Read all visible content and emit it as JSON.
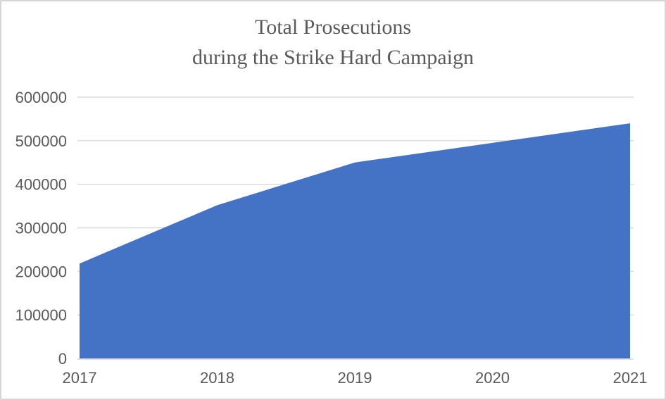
{
  "chart": {
    "title_line1": "Total Prosecutions",
    "title_line2": "during the Strike Hard Campaign"
  },
  "chart_data": {
    "type": "area",
    "title": "Total Prosecutions during the Strike Hard Campaign",
    "categories": [
      "2017",
      "2018",
      "2019",
      "2020",
      "2021"
    ],
    "values": [
      218000,
      352000,
      450000,
      495000,
      540000
    ],
    "xlabel": "",
    "ylabel": "",
    "ylim": [
      0,
      600000
    ],
    "ytick_interval": 100000,
    "ytick_labels": [
      "0",
      "100000",
      "200000",
      "300000",
      "400000",
      "500000",
      "600000"
    ],
    "grid": true,
    "legend": false,
    "area_color": "#4472C4",
    "gridline_color": "#D9D9D9",
    "axis_line_color": "#D9D9D9",
    "axis_text_color": "#595959",
    "title_color": "#595959",
    "background_color": "#FFFFFF",
    "frame_border_color": "#D6D6D6"
  }
}
